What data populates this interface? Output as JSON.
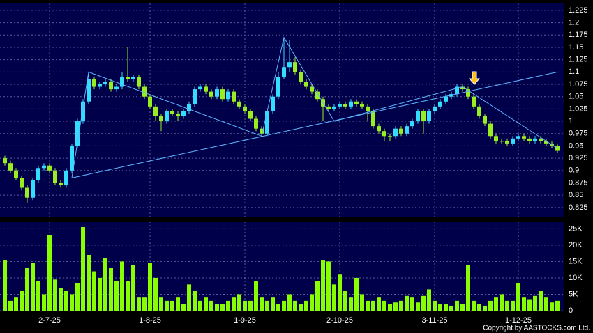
{
  "chart_data": {
    "type": "candlestick",
    "categories": [
      null,
      null,
      null,
      null,
      null,
      null,
      null,
      null,
      "2-7-25",
      null,
      null,
      null,
      null,
      null,
      null,
      null,
      null,
      null,
      null,
      null,
      null,
      null,
      null,
      null,
      null,
      null,
      "1-8-25",
      null,
      null,
      null,
      null,
      null,
      null,
      null,
      null,
      null,
      null,
      null,
      null,
      null,
      null,
      null,
      null,
      "1-9-25",
      null,
      null,
      null,
      null,
      null,
      null,
      null,
      null,
      null,
      null,
      null,
      null,
      null,
      null,
      null,
      null,
      "2-10-25",
      null,
      null,
      null,
      null,
      null,
      null,
      null,
      null,
      null,
      null,
      null,
      null,
      null,
      null,
      null,
      null,
      "3-11-25",
      null,
      null,
      null,
      null,
      null,
      null,
      null,
      null,
      null,
      null,
      null,
      null,
      null,
      null,
      "1-12-25",
      null,
      null,
      null,
      null,
      null,
      null,
      null
    ],
    "open": [
      0.925,
      0.915,
      0.9,
      0.885,
      0.865,
      0.845,
      0.88,
      0.905,
      0.91,
      0.9,
      0.875,
      0.87,
      0.9,
      0.95,
      1.0,
      1.04,
      1.085,
      1.07,
      1.075,
      1.08,
      1.065,
      1.07,
      1.09,
      1.085,
      1.09,
      1.07,
      1.05,
      1.03,
      1.01,
      1.0,
      1.02,
      1.015,
      1.01,
      1.02,
      1.035,
      1.065,
      1.07,
      1.06,
      1.05,
      1.065,
      1.045,
      1.06,
      1.04,
      1.03,
      1.02,
      1.005,
      0.985,
      0.975,
      1.02,
      1.05,
      1.09,
      1.11,
      1.12,
      1.1,
      1.08,
      1.07,
      1.06,
      1.045,
      1.03,
      1.025,
      1.03,
      1.035,
      1.03,
      1.04,
      1.035,
      1.03,
      1.02,
      0.99,
      0.98,
      0.97,
      0.97,
      0.985,
      0.975,
      0.99,
      1.0,
      1.02,
      1.0,
      1.02,
      1.03,
      1.04,
      1.05,
      1.055,
      1.07,
      1.065,
      1.05,
      1.03,
      1.01,
      0.995,
      0.97,
      0.96,
      0.96,
      0.955,
      0.965,
      0.97,
      0.965,
      0.96,
      0.965,
      0.96,
      0.955,
      0.95
    ],
    "high": [
      0.93,
      0.92,
      0.905,
      0.89,
      0.87,
      0.885,
      0.91,
      0.915,
      0.915,
      0.905,
      0.88,
      0.905,
      0.955,
      1.005,
      1.045,
      1.1,
      1.09,
      1.08,
      1.085,
      1.085,
      1.075,
      1.1,
      1.15,
      1.095,
      1.095,
      1.075,
      1.055,
      1.035,
      1.015,
      1.025,
      1.025,
      1.02,
      1.025,
      1.04,
      1.07,
      1.075,
      1.075,
      1.065,
      1.07,
      1.07,
      1.065,
      1.065,
      1.045,
      1.035,
      1.025,
      1.01,
      0.99,
      1.025,
      1.055,
      1.1,
      1.17,
      1.165,
      1.13,
      1.105,
      1.085,
      1.075,
      1.065,
      1.05,
      1.035,
      1.035,
      1.04,
      1.04,
      1.045,
      1.045,
      1.04,
      1.035,
      1.025,
      0.995,
      0.985,
      0.975,
      0.99,
      0.99,
      0.995,
      1.005,
      1.025,
      1.025,
      1.025,
      1.035,
      1.045,
      1.055,
      1.06,
      1.075,
      1.075,
      1.07,
      1.055,
      1.035,
      1.015,
      1.0,
      0.975,
      0.965,
      0.965,
      0.97,
      0.975,
      0.975,
      0.97,
      0.97,
      0.97,
      0.965,
      0.96,
      0.955
    ],
    "low": [
      0.91,
      0.895,
      0.88,
      0.86,
      0.835,
      0.84,
      0.875,
      0.9,
      0.895,
      0.87,
      0.865,
      0.865,
      0.895,
      0.945,
      0.995,
      1.035,
      1.065,
      1.065,
      1.07,
      1.06,
      1.06,
      1.065,
      1.08,
      1.08,
      1.065,
      1.045,
      1.025,
      1.0,
      0.98,
      0.995,
      1.01,
      1.0,
      1.005,
      1.015,
      1.03,
      1.06,
      1.055,
      1.045,
      1.045,
      1.04,
      1.04,
      1.035,
      1.025,
      1.015,
      1.0,
      0.98,
      0.97,
      0.97,
      1.015,
      1.045,
      1.085,
      1.1,
      1.095,
      1.075,
      1.065,
      1.055,
      1.04,
      1.0,
      1.02,
      1.02,
      1.025,
      1.025,
      1.025,
      1.03,
      1.025,
      1.0,
      0.985,
      0.975,
      0.96,
      0.96,
      0.965,
      0.97,
      0.97,
      0.985,
      0.995,
      0.975,
      0.995,
      1.015,
      1.025,
      1.035,
      1.045,
      1.05,
      1.06,
      1.045,
      1.025,
      1.005,
      0.99,
      0.965,
      0.955,
      0.955,
      0.95,
      0.95,
      0.96,
      0.96,
      0.955,
      0.955,
      0.955,
      0.95,
      0.945,
      0.935
    ],
    "close": [
      0.915,
      0.9,
      0.885,
      0.865,
      0.845,
      0.88,
      0.905,
      0.91,
      0.9,
      0.875,
      0.87,
      0.9,
      0.95,
      1.0,
      1.04,
      1.085,
      1.07,
      1.075,
      1.08,
      1.065,
      1.07,
      1.09,
      1.085,
      1.09,
      1.07,
      1.05,
      1.03,
      1.01,
      1.0,
      1.02,
      1.015,
      1.01,
      1.02,
      1.035,
      1.065,
      1.07,
      1.06,
      1.05,
      1.065,
      1.045,
      1.06,
      1.04,
      1.03,
      1.02,
      1.005,
      0.985,
      0.975,
      1.02,
      1.05,
      1.09,
      1.11,
      1.12,
      1.1,
      1.08,
      1.07,
      1.06,
      1.045,
      1.03,
      1.025,
      1.03,
      1.035,
      1.03,
      1.04,
      1.035,
      1.03,
      1.02,
      0.99,
      0.98,
      0.97,
      0.97,
      0.985,
      0.975,
      0.99,
      1.0,
      1.02,
      1.0,
      1.02,
      1.03,
      1.04,
      1.05,
      1.055,
      1.07,
      1.065,
      1.05,
      1.03,
      1.01,
      0.995,
      0.97,
      0.96,
      0.96,
      0.955,
      0.965,
      0.97,
      0.965,
      0.96,
      0.965,
      0.96,
      0.955,
      0.95,
      0.94
    ],
    "volume": [
      15500,
      3000,
      4000,
      6000,
      13000,
      14500,
      9000,
      5000,
      23000,
      9500,
      7000,
      6000,
      5000,
      8500,
      25500,
      17000,
      12000,
      10000,
      16000,
      13000,
      9000,
      15000,
      9000,
      14000,
      4000,
      4000,
      14500,
      10000,
      4000,
      3000,
      3000,
      4000,
      2000,
      8000,
      6000,
      3000,
      4000,
      3000,
      2000,
      2000,
      3000,
      4000,
      5000,
      3000,
      3000,
      9000,
      4000,
      3000,
      4000,
      2000,
      3000,
      5000,
      3000,
      2000,
      3000,
      5000,
      9000,
      15500,
      15000,
      8000,
      11000,
      6000,
      4000,
      10000,
      5000,
      3000,
      3000,
      4000,
      3000,
      2000,
      2500,
      3000,
      4500,
      4000,
      2500,
      4500,
      6500,
      3000,
      2000,
      2000,
      1500,
      3000,
      2000,
      14000,
      3000,
      2000,
      1500,
      3000,
      4000,
      5000,
      3000,
      3000,
      8500,
      4000,
      3500,
      4500,
      6000,
      4000,
      2500,
      3000
    ],
    "up_color": "#33ddff",
    "down_color": "#99ee22",
    "volume_color": "#88ff00",
    "trend_color": "#5fb4ff",
    "trend_lines": [
      {
        "x": [
          12,
          15,
          46,
          50,
          59,
          82,
          99
        ],
        "y": [
          0.885,
          1.1,
          0.97,
          1.17,
          1.0,
          1.07,
          0.945
        ]
      },
      {
        "x": [
          12,
          99
        ],
        "y": [
          0.885,
          1.1
        ]
      }
    ],
    "ylim": [
      0.805,
      1.239
    ],
    "yticks": [
      0.825,
      0.85,
      0.875,
      0.9,
      0.925,
      0.95,
      0.975,
      1,
      1.025,
      1.05,
      1.075,
      1.1,
      1.125,
      1.15,
      1.175,
      1.2,
      1.225
    ],
    "y2lim": [
      0,
      27200
    ],
    "y2ticks": [
      0,
      {
        "value": 5000,
        "label": "5K"
      },
      {
        "value": 10000,
        "label": "10K"
      },
      {
        "value": 15000,
        "label": "15K"
      },
      {
        "value": 20000,
        "label": "20K"
      },
      {
        "value": 25000,
        "label": "25K"
      }
    ],
    "grid": true,
    "copyright": "Copyright by AASTOCKS.com Ltd."
  }
}
